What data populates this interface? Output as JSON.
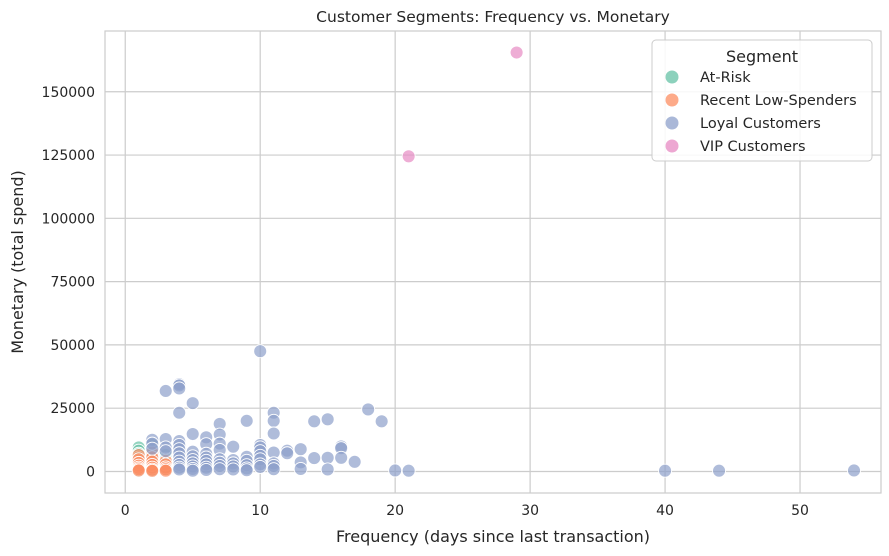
{
  "chart_data": {
    "type": "scatter",
    "title": "Customer Segments: Frequency vs. Monetary",
    "xlabel": "Frequency (days since last transaction)",
    "ylabel": "Monetary (total spend)",
    "xlim": [
      -1.5,
      56
    ],
    "ylim": [
      -8500,
      174000
    ],
    "x_ticks": [
      0,
      10,
      20,
      30,
      40,
      50
    ],
    "y_ticks": [
      0,
      25000,
      50000,
      75000,
      100000,
      125000,
      150000
    ],
    "x_tick_labels": [
      "0",
      "10",
      "20",
      "30",
      "40",
      "50"
    ],
    "y_tick_labels": [
      "0",
      "25000",
      "50000",
      "75000",
      "100000",
      "125000",
      "150000"
    ],
    "grid": true,
    "legend_title": "Segment",
    "legend_position": "top-right",
    "series": [
      {
        "name": "At-Risk",
        "color": "#66c2a5",
        "points": [
          [
            1,
            9500
          ],
          [
            1,
            8200
          ],
          [
            1,
            7000
          ],
          [
            1,
            5500
          ],
          [
            1,
            4200
          ],
          [
            1,
            3100
          ],
          [
            1,
            2000
          ],
          [
            1,
            1200
          ],
          [
            1,
            600
          ],
          [
            1,
            200
          ],
          [
            2,
            10500
          ],
          [
            2,
            8500
          ],
          [
            2,
            6800
          ],
          [
            2,
            5200
          ],
          [
            2,
            4000
          ],
          [
            2,
            3000
          ],
          [
            2,
            1800
          ],
          [
            2,
            900
          ],
          [
            2,
            300
          ],
          [
            3,
            6500
          ],
          [
            3,
            5000
          ],
          [
            3,
            3500
          ],
          [
            3,
            2200
          ],
          [
            3,
            1400
          ],
          [
            3,
            700
          ]
        ]
      },
      {
        "name": "Recent Low-Spenders",
        "color": "#fc8d62",
        "points": [
          [
            1,
            6500
          ],
          [
            1,
            4800
          ],
          [
            1,
            3400
          ],
          [
            1,
            2300
          ],
          [
            1,
            1500
          ],
          [
            1,
            900
          ],
          [
            1,
            400
          ],
          [
            2,
            7500
          ],
          [
            2,
            5600
          ],
          [
            2,
            3900
          ],
          [
            2,
            2600
          ],
          [
            2,
            1500
          ],
          [
            2,
            700
          ],
          [
            2,
            250
          ],
          [
            3,
            4200
          ],
          [
            3,
            2800
          ],
          [
            3,
            1600
          ],
          [
            3,
            900
          ],
          [
            3,
            300
          ]
        ]
      },
      {
        "name": "Loyal Customers",
        "color": "#8da0cb",
        "points": [
          [
            2,
            12500
          ],
          [
            2,
            11000
          ],
          [
            2,
            9000
          ],
          [
            3,
            12800
          ],
          [
            3,
            31800
          ],
          [
            3,
            9500
          ],
          [
            3,
            8000
          ],
          [
            4,
            34500
          ],
          [
            4,
            34000
          ],
          [
            4,
            32800
          ],
          [
            4,
            23200
          ],
          [
            4,
            12000
          ],
          [
            4,
            10500
          ],
          [
            4,
            8800
          ],
          [
            4,
            7200
          ],
          [
            4,
            5500
          ],
          [
            4,
            3900
          ],
          [
            4,
            2600
          ],
          [
            4,
            1500
          ],
          [
            4,
            800
          ],
          [
            5,
            27000
          ],
          [
            5,
            14800
          ],
          [
            5,
            7800
          ],
          [
            5,
            6000
          ],
          [
            5,
            4500
          ],
          [
            5,
            3200
          ],
          [
            5,
            2000
          ],
          [
            5,
            1000
          ],
          [
            5,
            300
          ],
          [
            6,
            13500
          ],
          [
            6,
            10800
          ],
          [
            6,
            7000
          ],
          [
            6,
            5500
          ],
          [
            6,
            4200
          ],
          [
            6,
            2800
          ],
          [
            6,
            1500
          ],
          [
            6,
            600
          ],
          [
            7,
            18800
          ],
          [
            7,
            14600
          ],
          [
            7,
            11000
          ],
          [
            7,
            8500
          ],
          [
            7,
            4800
          ],
          [
            7,
            3500
          ],
          [
            7,
            2200
          ],
          [
            7,
            900
          ],
          [
            8,
            9800
          ],
          [
            8,
            4500
          ],
          [
            8,
            3200
          ],
          [
            8,
            2000
          ],
          [
            8,
            800
          ],
          [
            9,
            20000
          ],
          [
            9,
            5800
          ],
          [
            9,
            4200
          ],
          [
            9,
            2500
          ],
          [
            9,
            1200
          ],
          [
            9,
            500
          ],
          [
            10,
            47500
          ],
          [
            10,
            10500
          ],
          [
            10,
            9500
          ],
          [
            10,
            8000
          ],
          [
            10,
            6200
          ],
          [
            10,
            4800
          ],
          [
            10,
            2800
          ],
          [
            10,
            1800
          ],
          [
            11,
            23200
          ],
          [
            11,
            20000
          ],
          [
            11,
            15000
          ],
          [
            11,
            7500
          ],
          [
            11,
            3200
          ],
          [
            11,
            2200
          ],
          [
            11,
            900
          ],
          [
            12,
            8200
          ],
          [
            12,
            7200
          ],
          [
            13,
            8800
          ],
          [
            13,
            3600
          ],
          [
            13,
            1000
          ],
          [
            14,
            19800
          ],
          [
            14,
            5300
          ],
          [
            15,
            20600
          ],
          [
            15,
            5400
          ],
          [
            15,
            800
          ],
          [
            16,
            9900
          ],
          [
            16,
            9200
          ],
          [
            16,
            5400
          ],
          [
            17,
            3800
          ],
          [
            18,
            24500
          ],
          [
            19,
            19800
          ],
          [
            20,
            400
          ],
          [
            21,
            300
          ],
          [
            40,
            300
          ],
          [
            44,
            300
          ],
          [
            54,
            400
          ]
        ]
      },
      {
        "name": "VIP Customers",
        "color": "#e78ac3",
        "points": [
          [
            21,
            124500
          ],
          [
            29,
            165500
          ]
        ]
      }
    ]
  }
}
